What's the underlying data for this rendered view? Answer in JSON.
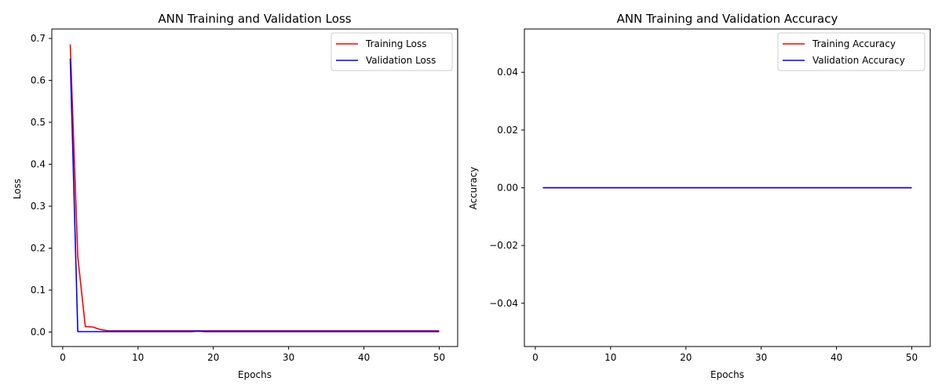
{
  "chart_data": [
    {
      "type": "line",
      "title": "ANN Training and Validation Loss",
      "xlabel": "Epochs",
      "ylabel": "Loss",
      "xlim": [
        -1.45,
        52.45
      ],
      "ylim": [
        -0.0345,
        0.7225
      ],
      "xticks": [
        0,
        10,
        20,
        30,
        40,
        50
      ],
      "yticks": [
        0.0,
        0.1,
        0.2,
        0.3,
        0.4,
        0.5,
        0.6,
        0.7
      ],
      "ytick_labels": [
        "0.0",
        "0.1",
        "0.2",
        "0.3",
        "0.4",
        "0.5",
        "0.6",
        "0.7"
      ],
      "grid": false,
      "legend_position": "top-right",
      "x": [
        1,
        2,
        3,
        4,
        5,
        6,
        7,
        8,
        9,
        10,
        11,
        12,
        13,
        14,
        15,
        16,
        17,
        18,
        19,
        20,
        21,
        22,
        23,
        24,
        25,
        26,
        27,
        28,
        29,
        30,
        31,
        32,
        33,
        34,
        35,
        36,
        37,
        38,
        39,
        40,
        41,
        42,
        43,
        44,
        45,
        46,
        47,
        48,
        49,
        50
      ],
      "series": [
        {
          "name": "Training Loss",
          "color": "#ff0000",
          "values": [
            0.686,
            0.18,
            0.013,
            0.012,
            0.006,
            0.003,
            0.003,
            0.003,
            0.003,
            0.003,
            0.003,
            0.003,
            0.003,
            0.003,
            0.003,
            0.003,
            0.003,
            0.003,
            0.003,
            0.003,
            0.003,
            0.003,
            0.003,
            0.003,
            0.003,
            0.003,
            0.003,
            0.003,
            0.003,
            0.003,
            0.003,
            0.003,
            0.003,
            0.003,
            0.003,
            0.003,
            0.003,
            0.003,
            0.003,
            0.003,
            0.003,
            0.003,
            0.003,
            0.003,
            0.003,
            0.003,
            0.003,
            0.003,
            0.003,
            0.003
          ]
        },
        {
          "name": "Validation Loss",
          "color": "#0000ff",
          "values": [
            0.652,
            0.001,
            0.001,
            0.001,
            0.001,
            0.001,
            0.001,
            0.001,
            0.001,
            0.001,
            0.001,
            0.001,
            0.001,
            0.001,
            0.001,
            0.001,
            0.001,
            0.002,
            0.001,
            0.001,
            0.001,
            0.001,
            0.001,
            0.001,
            0.001,
            0.001,
            0.001,
            0.001,
            0.001,
            0.001,
            0.001,
            0.001,
            0.001,
            0.001,
            0.001,
            0.001,
            0.001,
            0.001,
            0.001,
            0.001,
            0.001,
            0.001,
            0.001,
            0.001,
            0.001,
            0.001,
            0.001,
            0.001,
            0.001,
            0.001
          ]
        }
      ]
    },
    {
      "type": "line",
      "title": "ANN Training and Validation Accuracy",
      "xlabel": "Epochs",
      "ylabel": "Accuracy",
      "xlim": [
        -1.45,
        52.45
      ],
      "ylim": [
        -0.055,
        0.055
      ],
      "xticks": [
        0,
        10,
        20,
        30,
        40,
        50
      ],
      "yticks": [
        -0.04,
        -0.02,
        0.0,
        0.02,
        0.04
      ],
      "ytick_labels": [
        "−0.04",
        "−0.02",
        "0.00",
        "0.02",
        "0.04"
      ],
      "grid": false,
      "legend_position": "top-right",
      "x": [
        1,
        2,
        3,
        4,
        5,
        6,
        7,
        8,
        9,
        10,
        11,
        12,
        13,
        14,
        15,
        16,
        17,
        18,
        19,
        20,
        21,
        22,
        23,
        24,
        25,
        26,
        27,
        28,
        29,
        30,
        31,
        32,
        33,
        34,
        35,
        36,
        37,
        38,
        39,
        40,
        41,
        42,
        43,
        44,
        45,
        46,
        47,
        48,
        49,
        50
      ],
      "series": [
        {
          "name": "Training Accuracy",
          "color": "#ff0000",
          "values": [
            0,
            0,
            0,
            0,
            0,
            0,
            0,
            0,
            0,
            0,
            0,
            0,
            0,
            0,
            0,
            0,
            0,
            0,
            0,
            0,
            0,
            0,
            0,
            0,
            0,
            0,
            0,
            0,
            0,
            0,
            0,
            0,
            0,
            0,
            0,
            0,
            0,
            0,
            0,
            0,
            0,
            0,
            0,
            0,
            0,
            0,
            0,
            0,
            0,
            0
          ]
        },
        {
          "name": "Validation Accuracy",
          "color": "#0000ff",
          "values": [
            0,
            0,
            0,
            0,
            0,
            0,
            0,
            0,
            0,
            0,
            0,
            0,
            0,
            0,
            0,
            0,
            0,
            0,
            0,
            0,
            0,
            0,
            0,
            0,
            0,
            0,
            0,
            0,
            0,
            0,
            0,
            0,
            0,
            0,
            0,
            0,
            0,
            0,
            0,
            0,
            0,
            0,
            0,
            0,
            0,
            0,
            0,
            0,
            0,
            0
          ]
        }
      ]
    }
  ]
}
